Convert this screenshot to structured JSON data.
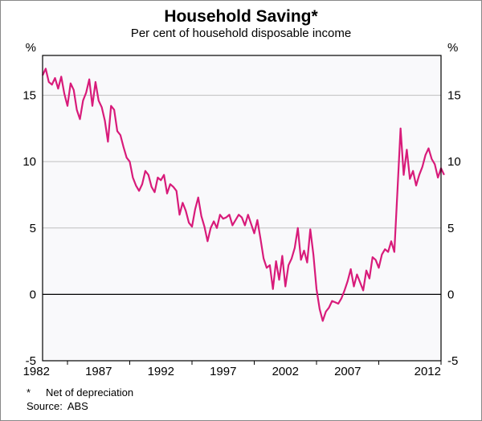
{
  "chart": {
    "type": "line",
    "title": "Household Saving*",
    "title_fontsize": 21,
    "title_color": "#000000",
    "subtitle": "Per cent of household disposable income",
    "subtitle_fontsize": 15,
    "subtitle_color": "#000000",
    "y_unit_left": "%",
    "y_unit_right": "%",
    "background_color": "#ffffff",
    "plot_background": "#f9f9fb",
    "border_color": "#000000",
    "grid_color": "#bfbfbf",
    "zero_line_color": "#000000",
    "series_color": "#d81b7a",
    "line_width": 2.2,
    "tick_fontsize": 15,
    "x": {
      "min": 1980,
      "max": 2012,
      "ticks": [
        1982,
        1987,
        1992,
        1997,
        2002,
        2007,
        2012
      ]
    },
    "y": {
      "min": -5,
      "max": 18,
      "ticks": [
        -5,
        0,
        5,
        10,
        15
      ],
      "tick_labels": [
        "-5",
        "0",
        "5",
        "10",
        "15"
      ]
    },
    "data": [
      [
        1980.0,
        16.5
      ],
      [
        1980.25,
        17.0
      ],
      [
        1980.5,
        16.0
      ],
      [
        1980.75,
        15.8
      ],
      [
        1981.0,
        16.3
      ],
      [
        1981.25,
        15.5
      ],
      [
        1981.5,
        16.4
      ],
      [
        1981.75,
        15.1
      ],
      [
        1982.0,
        14.2
      ],
      [
        1982.25,
        15.9
      ],
      [
        1982.5,
        15.4
      ],
      [
        1982.75,
        13.9
      ],
      [
        1983.0,
        13.2
      ],
      [
        1983.25,
        14.6
      ],
      [
        1983.5,
        15.2
      ],
      [
        1983.75,
        16.2
      ],
      [
        1984.0,
        14.2
      ],
      [
        1984.25,
        16.0
      ],
      [
        1984.5,
        14.6
      ],
      [
        1984.75,
        14.1
      ],
      [
        1985.0,
        13.1
      ],
      [
        1985.25,
        11.5
      ],
      [
        1985.5,
        14.2
      ],
      [
        1985.75,
        13.9
      ],
      [
        1986.0,
        12.3
      ],
      [
        1986.25,
        12.0
      ],
      [
        1986.5,
        11.1
      ],
      [
        1986.75,
        10.3
      ],
      [
        1987.0,
        10.0
      ],
      [
        1987.25,
        8.8
      ],
      [
        1987.5,
        8.2
      ],
      [
        1987.75,
        7.8
      ],
      [
        1988.0,
        8.3
      ],
      [
        1988.25,
        9.3
      ],
      [
        1988.5,
        9.0
      ],
      [
        1988.75,
        8.1
      ],
      [
        1989.0,
        7.7
      ],
      [
        1989.25,
        8.8
      ],
      [
        1989.5,
        8.6
      ],
      [
        1989.75,
        9.0
      ],
      [
        1990.0,
        7.6
      ],
      [
        1990.25,
        8.3
      ],
      [
        1990.5,
        8.1
      ],
      [
        1990.75,
        7.8
      ],
      [
        1991.0,
        6.0
      ],
      [
        1991.25,
        6.9
      ],
      [
        1991.5,
        6.3
      ],
      [
        1991.75,
        5.4
      ],
      [
        1992.0,
        5.1
      ],
      [
        1992.25,
        6.4
      ],
      [
        1992.5,
        7.3
      ],
      [
        1992.75,
        5.9
      ],
      [
        1993.0,
        5.1
      ],
      [
        1993.25,
        4.0
      ],
      [
        1993.5,
        5.0
      ],
      [
        1993.75,
        5.5
      ],
      [
        1994.0,
        5.0
      ],
      [
        1994.25,
        6.0
      ],
      [
        1994.5,
        5.7
      ],
      [
        1994.75,
        5.8
      ],
      [
        1995.0,
        6.0
      ],
      [
        1995.25,
        5.2
      ],
      [
        1995.5,
        5.6
      ],
      [
        1995.75,
        6.0
      ],
      [
        1996.0,
        5.8
      ],
      [
        1996.25,
        5.2
      ],
      [
        1996.5,
        6.0
      ],
      [
        1996.75,
        5.3
      ],
      [
        1997.0,
        4.6
      ],
      [
        1997.25,
        5.6
      ],
      [
        1997.5,
        4.2
      ],
      [
        1997.75,
        2.7
      ],
      [
        1998.0,
        2.0
      ],
      [
        1998.25,
        2.2
      ],
      [
        1998.5,
        0.4
      ],
      [
        1998.75,
        2.5
      ],
      [
        1999.0,
        1.1
      ],
      [
        1999.25,
        2.9
      ],
      [
        1999.5,
        0.6
      ],
      [
        1999.75,
        2.2
      ],
      [
        2000.0,
        2.7
      ],
      [
        2000.25,
        3.5
      ],
      [
        2000.5,
        5.0
      ],
      [
        2000.75,
        2.6
      ],
      [
        2001.0,
        3.3
      ],
      [
        2001.25,
        2.4
      ],
      [
        2001.5,
        4.9
      ],
      [
        2001.75,
        3.0
      ],
      [
        2002.0,
        0.4
      ],
      [
        2002.25,
        -1.1
      ],
      [
        2002.5,
        -2.0
      ],
      [
        2002.75,
        -1.3
      ],
      [
        2003.0,
        -1.0
      ],
      [
        2003.25,
        -0.5
      ],
      [
        2003.5,
        -0.6
      ],
      [
        2003.75,
        -0.7
      ],
      [
        2004.0,
        -0.3
      ],
      [
        2004.25,
        0.3
      ],
      [
        2004.5,
        1.0
      ],
      [
        2004.75,
        1.9
      ],
      [
        2005.0,
        0.6
      ],
      [
        2005.25,
        1.5
      ],
      [
        2005.5,
        0.9
      ],
      [
        2005.75,
        0.3
      ],
      [
        2006.0,
        1.8
      ],
      [
        2006.25,
        1.2
      ],
      [
        2006.5,
        2.8
      ],
      [
        2006.75,
        2.6
      ],
      [
        2007.0,
        2.0
      ],
      [
        2007.25,
        3.0
      ],
      [
        2007.5,
        3.4
      ],
      [
        2007.75,
        3.2
      ],
      [
        2008.0,
        4.0
      ],
      [
        2008.25,
        3.2
      ],
      [
        2008.5,
        7.8
      ],
      [
        2008.75,
        12.5
      ],
      [
        2009.0,
        9.0
      ],
      [
        2009.25,
        10.9
      ],
      [
        2009.5,
        8.7
      ],
      [
        2009.75,
        9.3
      ],
      [
        2010.0,
        8.2
      ],
      [
        2010.25,
        9.0
      ],
      [
        2010.5,
        9.6
      ],
      [
        2010.75,
        10.5
      ],
      [
        2011.0,
        11.0
      ],
      [
        2011.25,
        10.2
      ],
      [
        2011.5,
        9.8
      ],
      [
        2011.75,
        8.8
      ],
      [
        2012.0,
        9.5
      ],
      [
        2012.25,
        9.0
      ]
    ],
    "footnote_marker": "*",
    "footnote_text": "Net of depreciation",
    "source_label": "Source:",
    "source_text": "ABS",
    "footnote_fontsize": 13
  }
}
